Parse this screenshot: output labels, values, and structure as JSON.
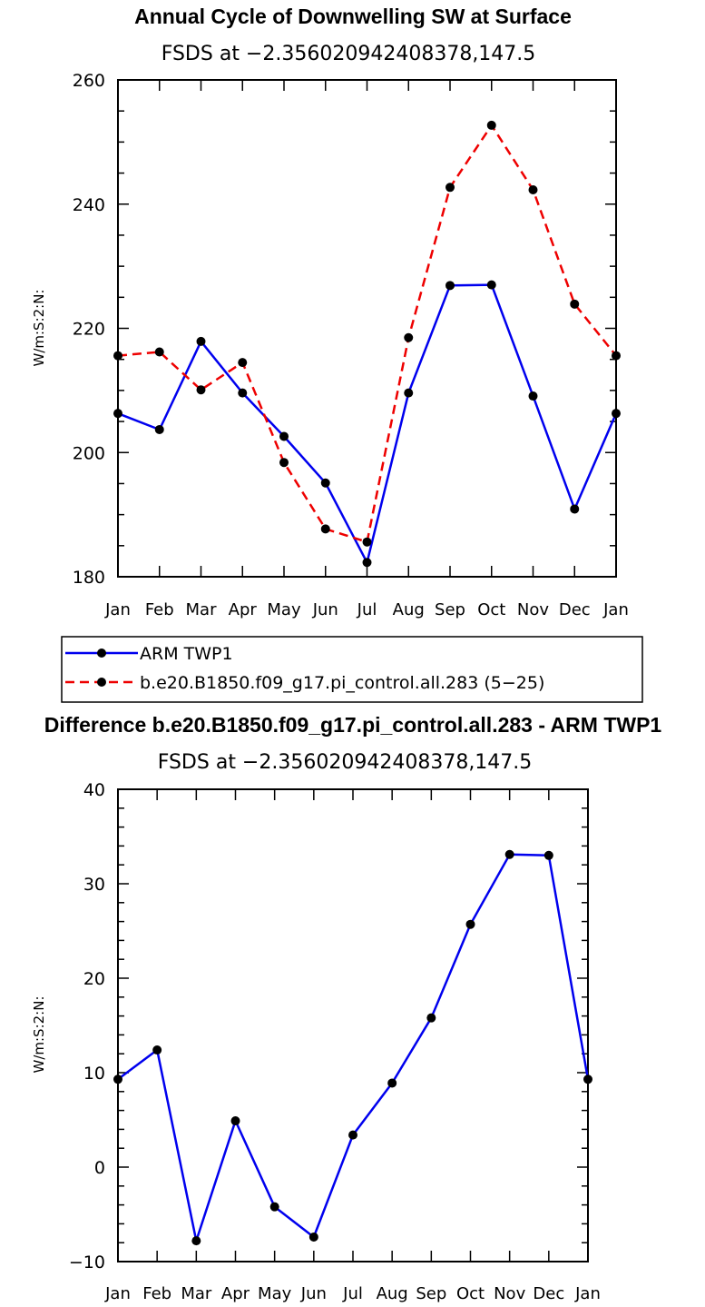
{
  "chart_data": [
    {
      "type": "line",
      "title": "Annual Cycle of Downwelling SW at Surface",
      "subtitle": "FSDS at −2.356020942408378,147.5",
      "ylabel": "W/m:S:2:N:",
      "xlabel": "",
      "categories": [
        "Jan",
        "Feb",
        "Mar",
        "Apr",
        "May",
        "Jun",
        "Jul",
        "Aug",
        "Sep",
        "Oct",
        "Nov",
        "Dec",
        "Jan"
      ],
      "ylim": [
        180,
        260
      ],
      "yticks": [
        "180",
        "200",
        "220",
        "240",
        "260"
      ],
      "series": [
        {
          "name": "ARM TWP1",
          "color": "#0000ee",
          "dash": "solid",
          "values": [
            206.3,
            203.7,
            217.9,
            209.6,
            202.6,
            195.1,
            182.3,
            209.6,
            226.9,
            227.0,
            209.1,
            190.9,
            206.3
          ]
        },
        {
          "name": "b.e20.B1850.f09_g17.pi_control.all.283 (5−25)",
          "color": "#ee0000",
          "dash": "dashed",
          "values": [
            215.6,
            216.2,
            210.1,
            214.5,
            198.4,
            187.7,
            185.6,
            218.5,
            242.7,
            252.7,
            242.3,
            223.9,
            215.6
          ]
        }
      ],
      "legend": "below"
    },
    {
      "type": "line",
      "title": "Difference b.e20.B1850.f09_g17.pi_control.all.283 - ARM TWP1",
      "subtitle": "FSDS at −2.356020942408378,147.5",
      "ylabel": "W/m:S:2:N:",
      "xlabel": "",
      "categories": [
        "Jan",
        "Feb",
        "Mar",
        "Apr",
        "May",
        "Jun",
        "Jul",
        "Aug",
        "Sep",
        "Oct",
        "Nov",
        "Dec",
        "Jan"
      ],
      "ylim": [
        -10,
        40
      ],
      "yticks": [
        "−10",
        "0",
        "10",
        "20",
        "30",
        "40"
      ],
      "series": [
        {
          "name": "Difference",
          "color": "#0000ee",
          "dash": "solid",
          "values": [
            9.3,
            12.4,
            -7.8,
            4.9,
            -4.2,
            -7.4,
            3.4,
            8.9,
            15.8,
            25.7,
            33.1,
            33.0,
            9.3
          ]
        }
      ]
    }
  ]
}
